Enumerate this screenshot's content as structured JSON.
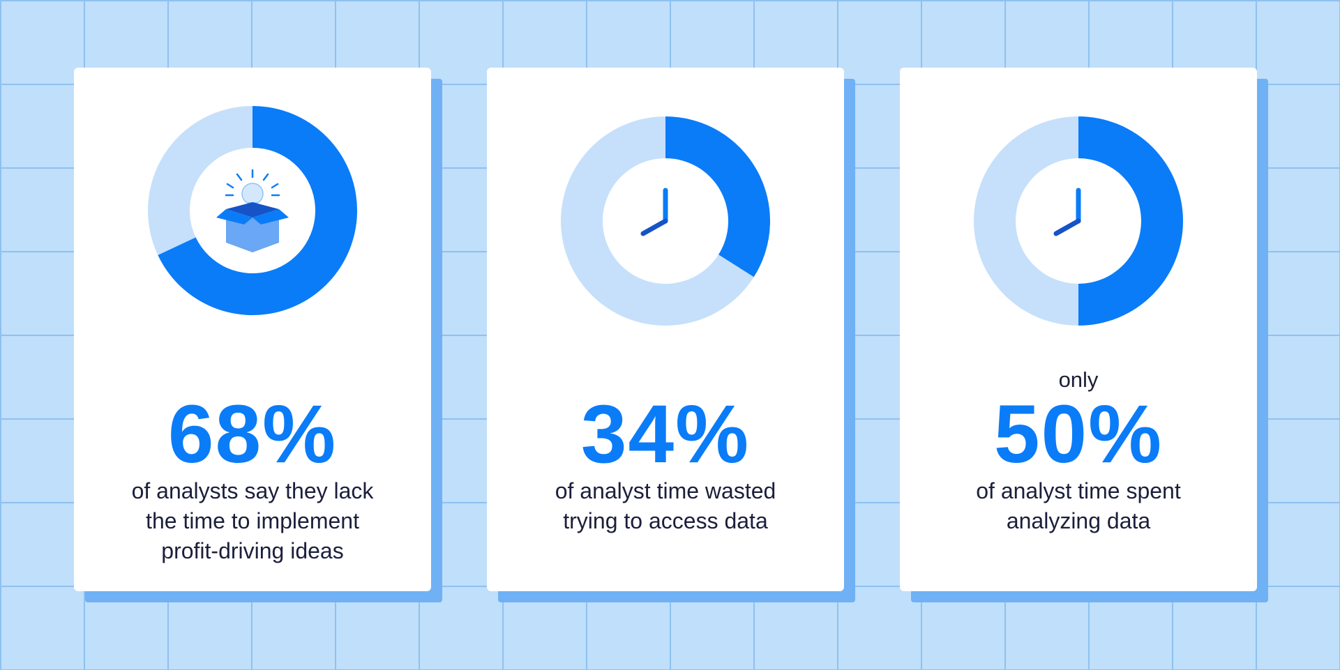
{
  "colors": {
    "accent": "#0a7cf8",
    "track": "#c6e0fb",
    "background": "#bfdffb",
    "grid": "#8fc1ef",
    "card_shadow": "#6fb1f4",
    "text": "#1b1f3b"
  },
  "cards": [
    {
      "icon": "lightbulb-box-icon",
      "pre_text": "",
      "percent_label": "68%",
      "desc_lines": [
        "of analysts say they lack",
        "the time to implement",
        "profit-driving ideas"
      ]
    },
    {
      "icon": "clock-icon",
      "pre_text": "",
      "percent_label": "34%",
      "desc_lines": [
        "of analyst time wasted",
        "trying to access data"
      ]
    },
    {
      "icon": "clock-icon",
      "pre_text": "only",
      "percent_label": "50%",
      "desc_lines": [
        "of analyst time spent",
        "analyzing data"
      ]
    }
  ],
  "chart_data": [
    {
      "type": "pie",
      "variant": "donut",
      "values": [
        68,
        32
      ],
      "unit": "%"
    },
    {
      "type": "pie",
      "variant": "donut",
      "values": [
        34,
        66
      ],
      "unit": "%"
    },
    {
      "type": "pie",
      "variant": "donut",
      "values": [
        50,
        50
      ],
      "unit": "%"
    }
  ]
}
